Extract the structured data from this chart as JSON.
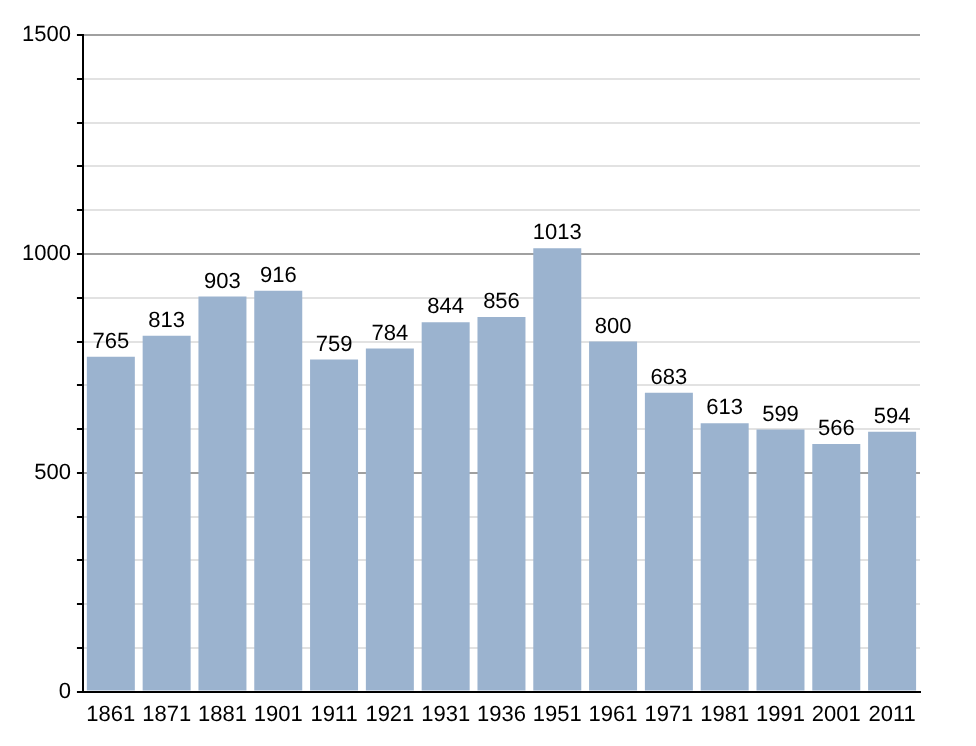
{
  "chart_data": {
    "type": "bar",
    "categories": [
      "1861",
      "1871",
      "1881",
      "1901",
      "1911",
      "1921",
      "1931",
      "1936",
      "1951",
      "1961",
      "1971",
      "1981",
      "1991",
      "2001",
      "2011"
    ],
    "values": [
      765,
      813,
      903,
      916,
      759,
      784,
      844,
      856,
      1013,
      800,
      683,
      613,
      599,
      566,
      594
    ],
    "color": "#9bb3cf",
    "ylim": [
      0,
      1500
    ],
    "yticks": [
      0,
      {
        "value": 100,
        "label": null
      },
      {
        "value": 200,
        "label": null
      },
      {
        "value": 300,
        "label": null
      },
      {
        "value": 400,
        "label": null
      },
      500,
      {
        "value": 600,
        "label": null
      },
      {
        "value": 700,
        "label": null
      },
      {
        "value": 800,
        "label": null
      },
      {
        "value": 900,
        "label": null
      },
      1000,
      {
        "value": 1100,
        "label": null
      },
      {
        "value": 1200,
        "label": null
      },
      {
        "value": 1300,
        "label": null
      },
      {
        "value": 1400,
        "label": null
      },
      1500
    ],
    "grid": "y",
    "data_labels": true
  }
}
